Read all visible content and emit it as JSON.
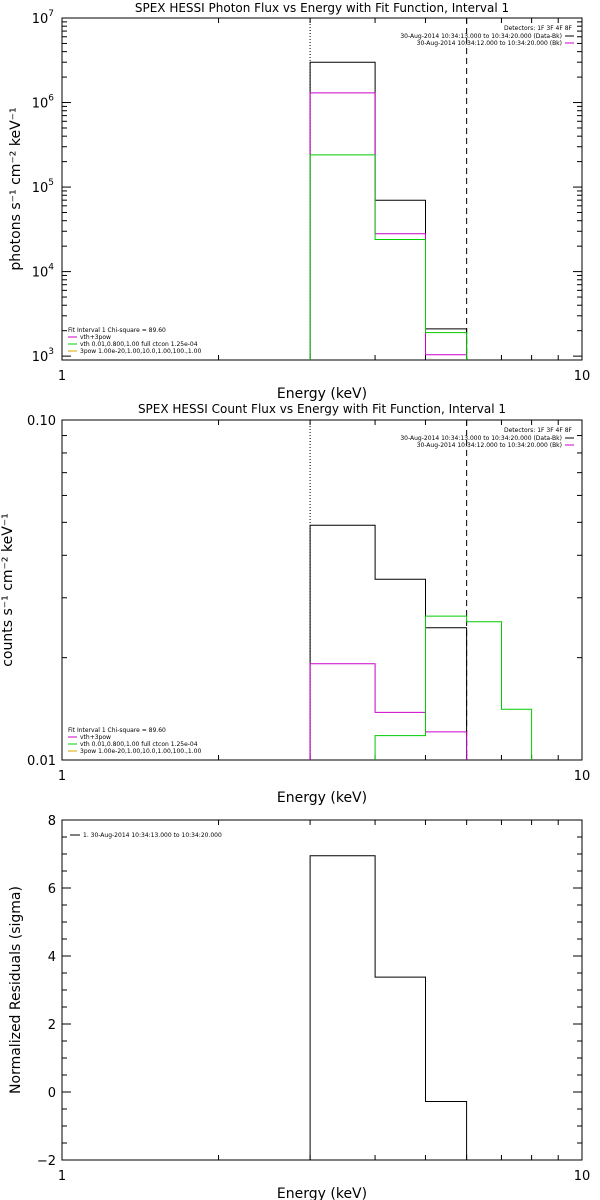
{
  "chart_data": [
    {
      "type": "line",
      "title": "SPEX HESSI Photon Flux vs Energy with Fit Function, Interval 1",
      "xlabel": "Energy (keV)",
      "ylabel": "photons s⁻¹ cm⁻² keV⁻¹",
      "xscale": "log",
      "yscale": "log",
      "xlim": [
        1,
        10
      ],
      "ylim": [
        900,
        10000000
      ],
      "x_ticks": [
        {
          "v": 1,
          "label": "1"
        },
        {
          "v": 10,
          "label": "10"
        }
      ],
      "y_ticks": [
        {
          "v": 1000,
          "base": "10",
          "exp": "3"
        },
        {
          "v": 10000,
          "base": "10",
          "exp": "4"
        },
        {
          "v": 100000,
          "base": "10",
          "exp": "5"
        },
        {
          "v": 1000000,
          "base": "10",
          "exp": "6"
        },
        {
          "v": 10000000,
          "base": "10",
          "exp": "7"
        }
      ],
      "vlines": [
        {
          "x": 3.0,
          "style": "dotted"
        },
        {
          "x": 6.0,
          "style": "dashed"
        }
      ],
      "legend_top": {
        "header": "Detectors: 1F 3F 4F 8F",
        "lines": [
          {
            "text": "30-Aug-2014 10:34:13.000 to 10:34:20.000 (Data-Bk)",
            "color": "#000000"
          },
          {
            "text": "30-Aug-2014 10:34:12.000 to 10:34:20.000 (Bk)",
            "color": "#cc00cc"
          }
        ]
      },
      "legend_bottom": {
        "header": "Fit Interval 1   Chi-square = 89.60",
        "lines": [
          {
            "text": "vth+3pow",
            "color": "#cc00cc"
          },
          {
            "text": "vth 0.01,0.800,1.00  full ctcon 1.25e-04",
            "color": "#00cc00"
          },
          {
            "text": "3pow 1.00e-20,1.00,10.0,1.00,100.,1.00",
            "color": "#ccaa00"
          }
        ]
      },
      "series": [
        {
          "color": "#000000",
          "points": [
            [
              3.0,
              900
            ],
            [
              3.0,
              3000000
            ],
            [
              4.0,
              3000000
            ],
            [
              4.0,
              70000
            ],
            [
              5.0,
              70000
            ],
            [
              5.0,
              2100
            ],
            [
              6.0,
              2100
            ],
            [
              6.0,
              900
            ]
          ]
        },
        {
          "color": "#cc00cc",
          "points": [
            [
              3.0,
              900
            ],
            [
              3.0,
              1300000
            ],
            [
              4.0,
              1300000
            ],
            [
              4.0,
              28000
            ],
            [
              5.0,
              28000
            ],
            [
              5.0,
              1040
            ],
            [
              6.0,
              1040
            ]
          ]
        },
        {
          "color": "#00cc00",
          "points": [
            [
              3.0,
              900
            ],
            [
              3.0,
              240000
            ],
            [
              4.0,
              240000
            ],
            [
              4.0,
              24000
            ],
            [
              5.0,
              24000
            ],
            [
              5.0,
              1900
            ],
            [
              6.0,
              1900
            ],
            [
              6.0,
              900
            ]
          ]
        }
      ]
    },
    {
      "type": "line",
      "title": "SPEX HESSI Count Flux vs Energy with Fit Function, Interval 1",
      "xlabel": "Energy (keV)",
      "ylabel": "counts s⁻¹ cm⁻² keV⁻¹",
      "xscale": "log",
      "yscale": "log",
      "xlim": [
        1,
        10
      ],
      "ylim": [
        0.01,
        0.1
      ],
      "x_ticks": [
        {
          "v": 1,
          "label": "1"
        },
        {
          "v": 10,
          "label": "10"
        }
      ],
      "y_ticks": [
        {
          "v": 0.01,
          "label": "0.01"
        },
        {
          "v": 0.1,
          "label": "0.10"
        }
      ],
      "vlines": [
        {
          "x": 3.0,
          "style": "dotted"
        },
        {
          "x": 6.0,
          "style": "dashed"
        }
      ],
      "legend_top": {
        "header": "Detectors: 1F 3F 4F 8F",
        "lines": [
          {
            "text": "30-Aug-2014 10:34:13.000 to 10:34:20.000 (Data-Bk)",
            "color": "#000000"
          },
          {
            "text": "30-Aug-2014 10:34:12.000 to 10:34:20.000 (Bk)",
            "color": "#cc00cc"
          }
        ]
      },
      "legend_bottom": {
        "header": "Fit Interval 1   Chi-square = 89.60",
        "lines": [
          {
            "text": "vth+3pow",
            "color": "#cc00cc"
          },
          {
            "text": "vth 0.01,0.800,1.00  full ctcon 1.25e-04",
            "color": "#00cc00"
          },
          {
            "text": "3pow 1.00e-20,1.00,10.0,1.00,100.,1.00",
            "color": "#ccaa00"
          }
        ]
      },
      "series": [
        {
          "color": "#000000",
          "points": [
            [
              3.0,
              0.01
            ],
            [
              3.0,
              0.049
            ],
            [
              4.0,
              0.049
            ],
            [
              4.0,
              0.034
            ],
            [
              5.0,
              0.034
            ],
            [
              5.0,
              0.0245
            ],
            [
              6.0,
              0.0245
            ],
            [
              6.0,
              0.01
            ]
          ]
        },
        {
          "color": "#cc00cc",
          "points": [
            [
              3.0,
              0.01
            ],
            [
              3.0,
              0.0192
            ],
            [
              4.0,
              0.0192
            ],
            [
              4.0,
              0.0138
            ],
            [
              5.0,
              0.0138
            ],
            [
              5.0,
              0.0121
            ],
            [
              6.0,
              0.0121
            ],
            [
              6.0,
              0.01
            ]
          ]
        },
        {
          "color": "#00cc00",
          "points": [
            [
              4.0,
              0.01
            ],
            [
              4.0,
              0.0118
            ],
            [
              5.0,
              0.0118
            ],
            [
              5.0,
              0.0265
            ],
            [
              6.0,
              0.0265
            ],
            [
              6.0,
              0.0255
            ],
            [
              7.0,
              0.0255
            ],
            [
              7.0,
              0.0141
            ],
            [
              8.0,
              0.0141
            ],
            [
              8.0,
              0.01
            ]
          ]
        }
      ]
    },
    {
      "type": "line",
      "title": "",
      "xlabel": "Energy (keV)",
      "ylabel": "Normalized Residuals (sigma)",
      "xscale": "log",
      "yscale": "linear",
      "xlim": [
        1,
        10
      ],
      "ylim": [
        -2,
        8
      ],
      "x_ticks": [
        {
          "v": 1,
          "label": "1"
        },
        {
          "v": 10,
          "label": "10"
        }
      ],
      "y_ticks": [
        {
          "v": -2,
          "label": "−2"
        },
        {
          "v": 0,
          "label": "0"
        },
        {
          "v": 2,
          "label": "2"
        },
        {
          "v": 4,
          "label": "4"
        },
        {
          "v": 6,
          "label": "6"
        },
        {
          "v": 8,
          "label": "8"
        }
      ],
      "vlines": [],
      "legend_top": {
        "header": "",
        "lines": [
          {
            "text": "1. 30-Aug-2014 10:34:13.000 to 10:34:20.000",
            "color": "#000000"
          }
        ]
      },
      "legend_bottom": {
        "header": "",
        "lines": []
      },
      "series": [
        {
          "color": "#000000",
          "points": [
            [
              3.0,
              -2
            ],
            [
              3.0,
              6.95
            ],
            [
              4.0,
              6.95
            ],
            [
              4.0,
              3.38
            ],
            [
              5.0,
              3.38
            ],
            [
              5.0,
              -0.28
            ],
            [
              6.0,
              -0.28
            ],
            [
              6.0,
              -2
            ]
          ]
        }
      ]
    }
  ]
}
